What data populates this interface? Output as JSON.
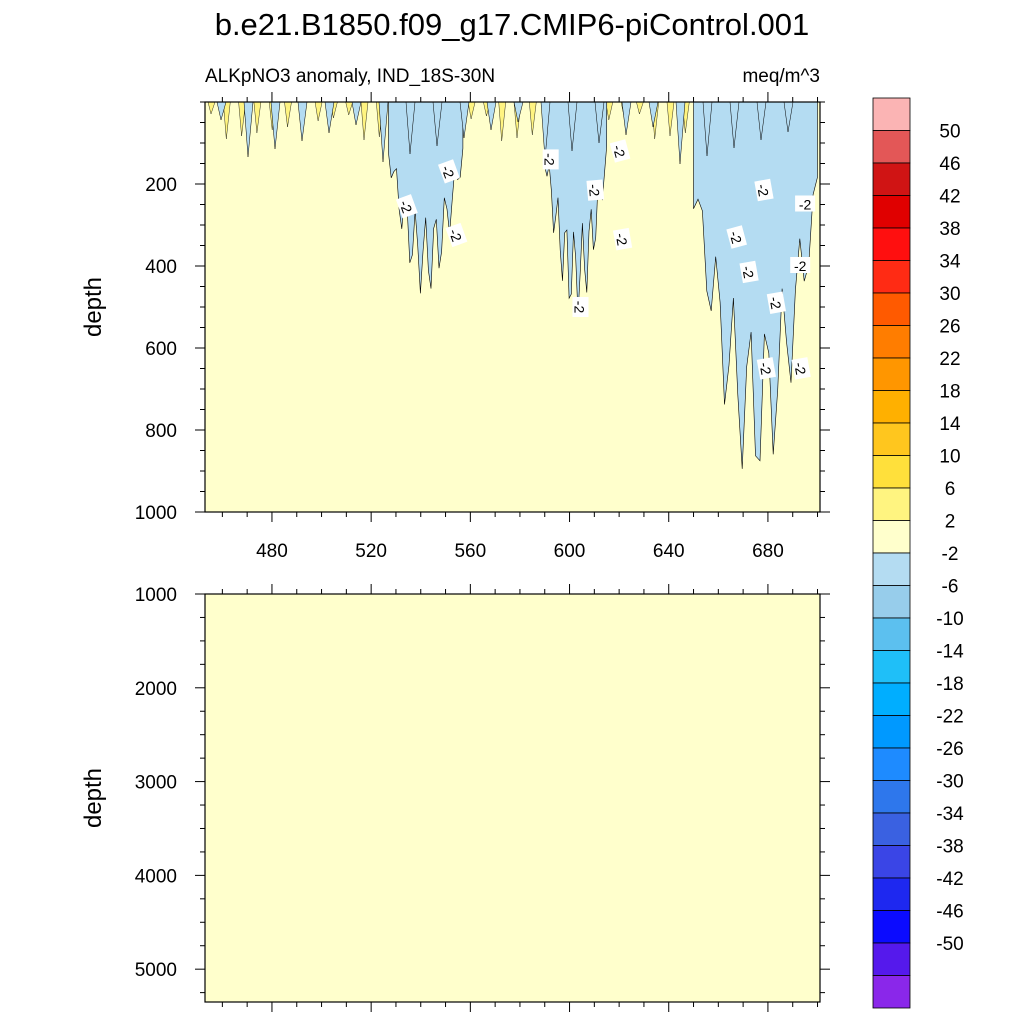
{
  "figure": {
    "title": "b.e21.B1850.f09_g17.CMIP6-piControl.001",
    "variable_label": "ALKpNO3 anomaly, IND_18S-30N",
    "units": "meq/m^3"
  },
  "chart_data": [
    {
      "type": "heatmap",
      "panel": "upper",
      "ylabel": "depth",
      "xlim": [
        453,
        701
      ],
      "ylim": [
        1000,
        0
      ],
      "y_inverted": true,
      "x_ticks": [
        480,
        520,
        560,
        600,
        640,
        680
      ],
      "y_ticks": [
        200,
        400,
        600,
        800,
        1000
      ],
      "background_band": "2 to -2",
      "contour_label_value": "-2",
      "contour_labels_count": 16,
      "negative_regions": [
        {
          "x_range": [
            527,
            557
          ],
          "max_depth": 475
        },
        {
          "x_range": [
            590,
            615
          ],
          "max_depth": 525
        },
        {
          "x_range": [
            650,
            700
          ],
          "max_depth": 940
        }
      ]
    },
    {
      "type": "heatmap",
      "panel": "lower",
      "ylabel": "depth",
      "xlim": [
        453,
        701
      ],
      "ylim": [
        5350,
        1000
      ],
      "y_inverted": true,
      "y_ticks": [
        1000,
        2000,
        3000,
        4000,
        5000
      ],
      "background_band": "2 to -2"
    }
  ],
  "colorbar": {
    "labels": [
      "50",
      "46",
      "42",
      "38",
      "34",
      "30",
      "26",
      "22",
      "18",
      "14",
      "10",
      "6",
      "2",
      "-2",
      "-6",
      "-10",
      "-14",
      "-18",
      "-22",
      "-26",
      "-30",
      "-34",
      "-38",
      "-42",
      "-46",
      "-50"
    ],
    "colors": [
      "#fbb4b4",
      "#e35757",
      "#d01414",
      "#e00000",
      "#ff0f0f",
      "#ff2b14",
      "#ff5a00",
      "#ff7d00",
      "#ff9600",
      "#ffb000",
      "#ffc61e",
      "#ffe03b",
      "#fff480",
      "#ffffcc",
      "#b4dcf2",
      "#97cdeb",
      "#5cc0ef",
      "#1fbff8",
      "#00aeff",
      "#0099ff",
      "#1e8bff",
      "#2e77ec",
      "#3a61e1",
      "#3a45e6",
      "#1e28f0",
      "#0b0bff",
      "#5519ec",
      "#8a27ea"
    ]
  }
}
